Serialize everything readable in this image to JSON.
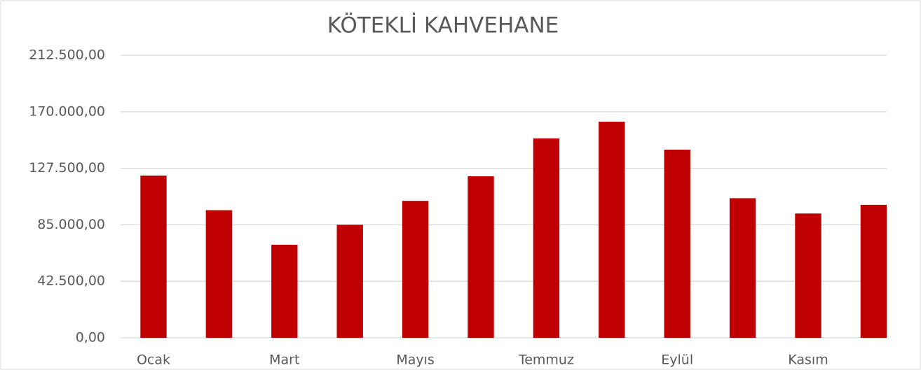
{
  "chart_data": {
    "type": "bar",
    "title": "KÖTEKLİ KAHVEHANE",
    "categories": [
      "Ocak",
      null,
      "Mart",
      null,
      "Mayıs",
      null,
      "Temmuz",
      null,
      "Eylül",
      null,
      "Kasım",
      null
    ],
    "values": [
      122000,
      96000,
      70000,
      85000,
      103000,
      121500,
      150000,
      162500,
      141500,
      105000,
      93500,
      100000
    ],
    "color": "#c00000",
    "ylim": [
      0,
      212500
    ],
    "yticks": [
      {
        "value": 0,
        "label": "0,00"
      },
      {
        "value": 42500,
        "label": "42.500,00"
      },
      {
        "value": 85000,
        "label": "85.000,00"
      },
      {
        "value": 127500,
        "label": "127.500,00"
      },
      {
        "value": 170000,
        "label": "170.000,00"
      },
      {
        "value": 212500,
        "label": "212.500,00"
      }
    ],
    "grid": true
  }
}
